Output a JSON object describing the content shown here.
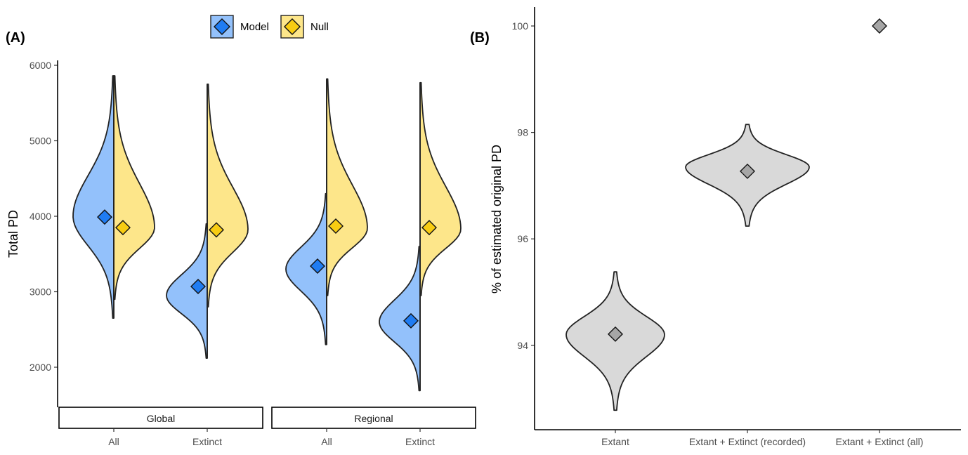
{
  "figure": {
    "panel_a_label": "(A)",
    "panel_b_label": "(B)"
  },
  "legend": {
    "items": [
      {
        "label": "Model",
        "fill": "#93c1fb",
        "point": "#1f7cf2"
      },
      {
        "label": "Null",
        "fill": "#fde68a",
        "point": "#f8cc12"
      }
    ]
  },
  "chart_data": [
    {
      "type": "violin",
      "panel": "A",
      "title": "",
      "xlabel": "",
      "ylabel": "Total PD",
      "ylim": [
        1500,
        6100
      ],
      "yticks": [
        2000,
        3000,
        4000,
        5000,
        6000
      ],
      "ytick_labels": [
        "2000",
        "3000",
        "4000",
        "5000",
        "6000"
      ],
      "facets": [
        "Global",
        "Regional"
      ],
      "categories": [
        "All",
        "Extinct"
      ],
      "legend_position": "top",
      "series": [
        {
          "name": "Model",
          "side": "left",
          "groups": [
            {
              "facet": "Global",
              "category": "All",
              "mean": 3990,
              "min": 2650,
              "max": 5860,
              "mode": 4000
            },
            {
              "facet": "Global",
              "category": "Extinct",
              "mean": 3070,
              "min": 2120,
              "max": 3900,
              "mode": 2950
            },
            {
              "facet": "Regional",
              "category": "All",
              "mean": 3340,
              "min": 2300,
              "max": 4300,
              "mode": 3300
            },
            {
              "facet": "Regional",
              "category": "Extinct",
              "mean": 2615,
              "min": 1690,
              "max": 3600,
              "mode": 2600
            }
          ]
        },
        {
          "name": "Null",
          "side": "right",
          "groups": [
            {
              "facet": "Global",
              "category": "All",
              "mean": 3850,
              "min": 2900,
              "max": 5860,
              "mode": 3850
            },
            {
              "facet": "Global",
              "category": "Extinct",
              "mean": 3820,
              "min": 2800,
              "max": 5750,
              "mode": 3820
            },
            {
              "facet": "Regional",
              "category": "All",
              "mean": 3870,
              "min": 2950,
              "max": 5820,
              "mode": 3840
            },
            {
              "facet": "Regional",
              "category": "Extinct",
              "mean": 3850,
              "min": 2950,
              "max": 5770,
              "mode": 3830
            }
          ]
        }
      ]
    },
    {
      "type": "violin",
      "panel": "B",
      "title": "",
      "xlabel": "",
      "ylabel": "% of estimated original PD",
      "ylim": [
        92.7,
        100.3
      ],
      "yticks": [
        94,
        96,
        98,
        100
      ],
      "ytick_labels": [
        "94",
        "96",
        "98",
        "100"
      ],
      "categories": [
        "Extant",
        "Extant + Extinct (recorded)",
        "Extant + Extinct (all)"
      ],
      "series": [
        {
          "name": "Estimated original PD",
          "fill": "#d9d9d9",
          "point": "#a6a6a6",
          "groups": [
            {
              "category": "Extant",
              "mean": 94.21,
              "min": 92.78,
              "max": 95.38,
              "mode": 94.2
            },
            {
              "category": "Extant + Extinct (recorded)",
              "mean": 97.27,
              "min": 96.24,
              "max": 98.15,
              "mode": 97.35
            },
            {
              "category": "Extant + Extinct (all)",
              "mean": 100.0,
              "min": null,
              "max": null,
              "mode": null
            }
          ]
        }
      ]
    }
  ]
}
